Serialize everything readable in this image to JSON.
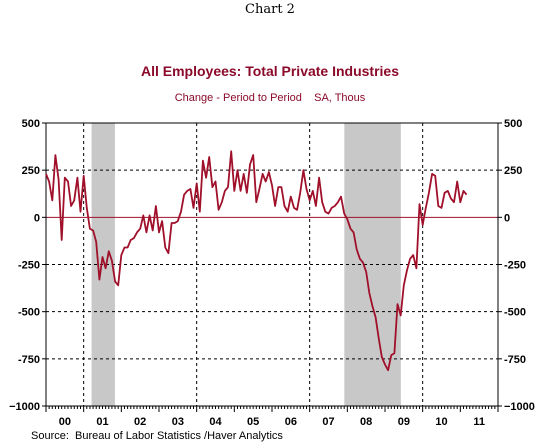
{
  "header": {
    "chart_number": "Chart 2"
  },
  "footer": {
    "source": "Source:  Bureau of Labor Statistics /Haver Analytics"
  },
  "colors": {
    "series": "#a0102a",
    "recession_shade": "#c8c8c8",
    "title": "#8b0a2a",
    "zero_line": "#a0102a"
  },
  "chart_data": {
    "type": "line",
    "title": "All Employees: Total Private Industries",
    "subtitle": "Change - Period to Period    SA, Thous",
    "ylim": [
      -1000,
      500
    ],
    "yticks": [
      500,
      250,
      0,
      -250,
      -500,
      -750,
      -1000
    ],
    "ytick_labels": [
      "500",
      "250",
      "0",
      "-250",
      "-500",
      "-750",
      "−1000"
    ],
    "xlim": [
      2000.0,
      2012.0
    ],
    "xtick_labels": [
      {
        "label": "00",
        "at": 2000.5
      },
      {
        "label": "01",
        "at": 2001.5
      },
      {
        "label": "02",
        "at": 2002.5
      },
      {
        "label": "03",
        "at": 2003.5
      },
      {
        "label": "04",
        "at": 2004.5
      },
      {
        "label": "05",
        "at": 2005.5
      },
      {
        "label": "06",
        "at": 2006.5
      },
      {
        "label": "07",
        "at": 2007.5
      },
      {
        "label": "08",
        "at": 2008.5
      },
      {
        "label": "09",
        "at": 2009.5
      },
      {
        "label": "10",
        "at": 2010.5
      },
      {
        "label": "11",
        "at": 2011.5
      }
    ],
    "grid_x": [
      2001.0,
      2004.0,
      2007.0,
      2010.0
    ],
    "grid_y": [
      250,
      -250,
      -500,
      -750
    ],
    "zero_line": 0,
    "recessions": [
      [
        2001.21,
        2001.83
      ],
      [
        2007.92,
        2009.42
      ]
    ],
    "series": [
      {
        "x_start": 2000.0,
        "x_step": 0.08333,
        "values": [
          230,
          190,
          90,
          330,
          200,
          -120,
          210,
          190,
          60,
          90,
          210,
          30,
          220,
          50,
          -60,
          -70,
          -130,
          -330,
          -210,
          -270,
          -180,
          -230,
          -340,
          -360,
          -200,
          -160,
          -160,
          -120,
          -110,
          -80,
          -60,
          10,
          -80,
          10,
          -70,
          60,
          -80,
          -20,
          -160,
          -190,
          -30,
          -30,
          -20,
          30,
          120,
          140,
          150,
          50,
          180,
          30,
          300,
          210,
          320,
          160,
          190,
          40,
          80,
          140,
          160,
          350,
          140,
          250,
          140,
          230,
          130,
          280,
          330,
          80,
          150,
          230,
          190,
          240,
          170,
          60,
          160,
          160,
          60,
          30,
          110,
          50,
          40,
          130,
          250,
          150,
          90,
          140,
          60,
          210,
          80,
          30,
          20,
          50,
          60,
          80,
          110,
          20,
          -10,
          -60,
          -80,
          -170,
          -220,
          -240,
          -290,
          -400,
          -470,
          -530,
          -640,
          -740,
          -780,
          -810,
          -730,
          -720,
          -460,
          -520,
          -360,
          -280,
          -220,
          -200,
          -270,
          70,
          -40,
          50,
          130,
          230,
          220,
          60,
          50,
          130,
          140,
          100,
          80,
          190,
          80,
          140,
          120
        ]
      }
    ]
  }
}
